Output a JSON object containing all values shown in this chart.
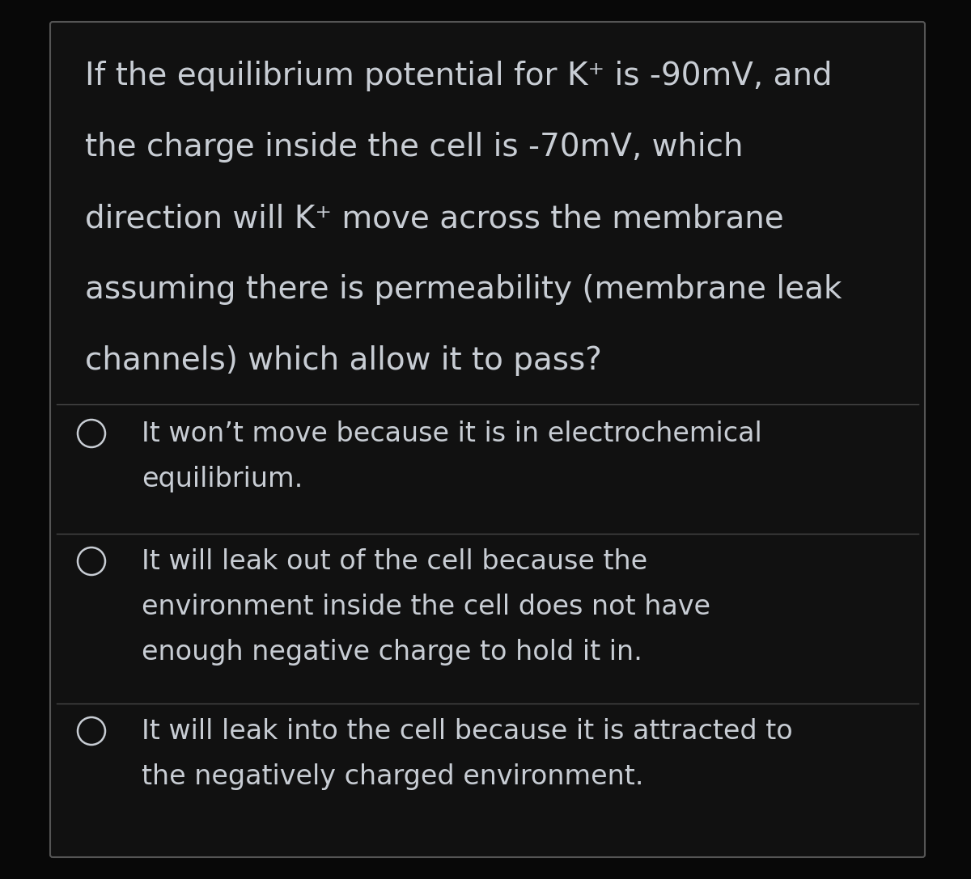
{
  "bg_color": "#080808",
  "card_color": "#111111",
  "text_color": "#c8cdd4",
  "line_color": "#484848",
  "border_color": "#555555",
  "question_lines": [
    "If the equilibrium potential for K⁺ is -90mV, and",
    "the charge inside the cell is -70mV, which",
    "direction will K⁺ move across the membrane",
    "assuming there is permeability (membrane leak",
    "channels) which allow it to pass?"
  ],
  "option1_lines": [
    "It won’t move because it is in electrochemical",
    "equilibrium."
  ],
  "option2_lines": [
    "It will leak out of the cell because the",
    "environment inside the cell does not have",
    "enough negative charge to hold it in."
  ],
  "option3_lines": [
    "It will leak into the cell because it is attracted to",
    "the negatively charged environment."
  ],
  "font_family": "DejaVu Sans",
  "question_fontsize": 28,
  "option_fontsize": 24,
  "figsize": [
    12.0,
    10.87
  ],
  "dpi": 100
}
